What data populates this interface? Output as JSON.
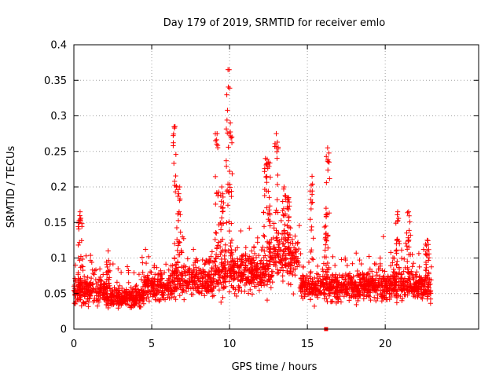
{
  "chart_data": {
    "type": "scatter",
    "title": "Day 179 of 2019, SRMTID for receiver emlo",
    "xlabel": "GPS time / hours",
    "ylabel": "SRMTID / TECUs",
    "xlim": [
      0,
      26
    ],
    "ylim": [
      0,
      0.4
    ],
    "x_ticks": [
      0,
      5,
      10,
      15,
      20
    ],
    "x_tick_labels": [
      "0",
      "5",
      "10",
      "15",
      "20"
    ],
    "y_ticks": [
      0,
      0.05,
      0.1,
      0.15,
      0.2,
      0.25,
      0.3,
      0.35,
      0.4
    ],
    "y_tick_labels": [
      "0",
      "0.05",
      "0.1",
      "0.15",
      "0.2",
      "0.25",
      "0.3",
      "0.35",
      "0.4"
    ],
    "grid": true,
    "marker_color": "#ff0000",
    "series": [
      {
        "name": "SRMTID",
        "marker": "plus",
        "background": {
          "x_range": [
            0,
            23
          ],
          "baseline_segments": [
            {
              "x": [
                0,
                2
              ],
              "y": 0.055
            },
            {
              "x": [
                2,
                4.5
              ],
              "y": 0.045
            },
            {
              "x": [
                4.5,
                6.3
              ],
              "y": 0.06
            },
            {
              "x": [
                6.3,
                9
              ],
              "y": 0.07
            },
            {
              "x": [
                9,
                12.5
              ],
              "y": 0.08
            },
            {
              "x": [
                12.5,
                14.5
              ],
              "y": 0.1
            },
            {
              "x": [
                14.5,
                20
              ],
              "y": 0.06
            },
            {
              "x": [
                20,
                23
              ],
              "y": 0.06
            }
          ]
        },
        "spikes": [
          {
            "x": 6.5,
            "y_top": 0.285
          },
          {
            "x": 6.8,
            "y_top": 0.2
          },
          {
            "x": 9.2,
            "y_top": 0.275
          },
          {
            "x": 9.5,
            "y_top": 0.2
          },
          {
            "x": 9.9,
            "y_top": 0.365
          },
          {
            "x": 10.05,
            "y_top": 0.29
          },
          {
            "x": 12.3,
            "y_top": 0.24
          },
          {
            "x": 12.5,
            "y_top": 0.235
          },
          {
            "x": 13.0,
            "y_top": 0.275
          },
          {
            "x": 13.5,
            "y_top": 0.2
          },
          {
            "x": 13.8,
            "y_top": 0.185
          },
          {
            "x": 15.3,
            "y_top": 0.215
          },
          {
            "x": 16.3,
            "y_top": 0.255
          },
          {
            "x": 16.2,
            "y_top": 0.17
          },
          {
            "x": 20.8,
            "y_top": 0.165
          },
          {
            "x": 21.5,
            "y_top": 0.165
          },
          {
            "x": 22.7,
            "y_top": 0.125
          },
          {
            "x": 2.2,
            "y_top": 0.11
          },
          {
            "x": 0.4,
            "y_top": 0.165
          }
        ],
        "highlighted_point": {
          "x": 16.2,
          "y": 0.0
        }
      }
    ]
  }
}
